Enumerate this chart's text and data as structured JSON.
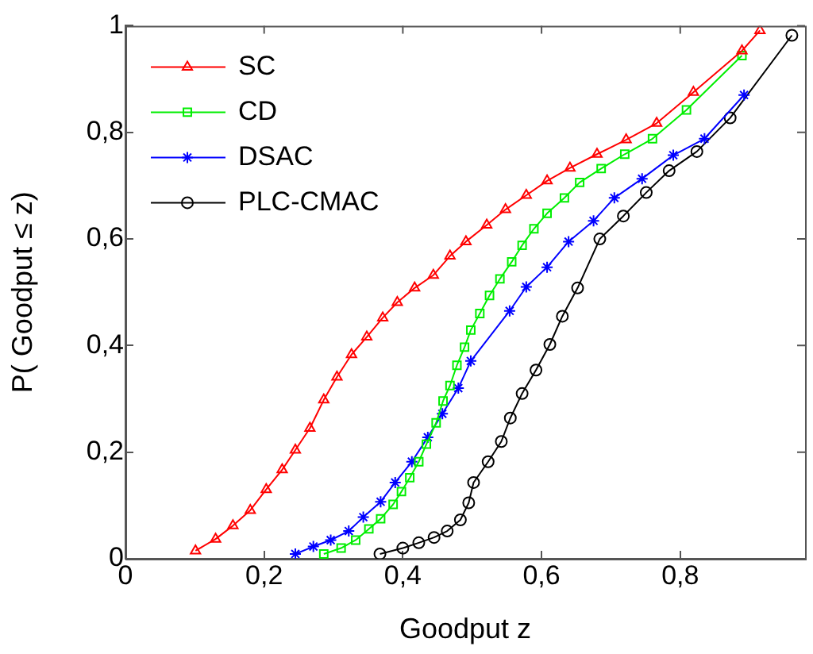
{
  "chart_data": {
    "type": "line",
    "xlabel": "Goodput z",
    "ylabel": "P( Goodput ≤ z)",
    "xlim": [
      0,
      0.98
    ],
    "ylim": [
      0,
      1
    ],
    "xticks": [
      0,
      {
        "value": 0.2,
        "label": "0,2"
      },
      {
        "value": 0.4,
        "label": "0,4"
      },
      {
        "value": 0.6,
        "label": "0,6"
      },
      {
        "value": 0.8,
        "label": "0,8"
      }
    ],
    "yticks": [
      0,
      {
        "value": 0.2,
        "label": "0,2"
      },
      {
        "value": 0.4,
        "label": "0,4"
      },
      {
        "value": 0.6,
        "label": "0,6"
      },
      {
        "value": 0.8,
        "label": "0,8"
      },
      1
    ],
    "grid": false,
    "legend": "top left",
    "line_style": "solid",
    "series": [
      {
        "name": "SC",
        "color": "#ff0000",
        "marker": "triangle",
        "x": [
          0.101,
          0.13,
          0.155,
          0.18,
          0.203,
          0.226,
          0.245,
          0.266,
          0.286,
          0.305,
          0.326,
          0.348,
          0.371,
          0.392,
          0.417,
          0.444,
          0.468,
          0.491,
          0.521,
          0.548,
          0.578,
          0.608,
          0.641,
          0.68,
          0.722,
          0.766,
          0.819,
          0.889,
          0.915
        ],
        "values": [
          0.015,
          0.037,
          0.062,
          0.091,
          0.13,
          0.167,
          0.204,
          0.245,
          0.298,
          0.341,
          0.383,
          0.416,
          0.452,
          0.481,
          0.508,
          0.532,
          0.568,
          0.595,
          0.626,
          0.655,
          0.682,
          0.709,
          0.733,
          0.759,
          0.786,
          0.817,
          0.875,
          0.953,
          0.991
        ]
      },
      {
        "name": "CD",
        "color": "#00ee00",
        "marker": "square",
        "x": [
          0.286,
          0.311,
          0.332,
          0.351,
          0.368,
          0.386,
          0.398,
          0.41,
          0.423,
          0.434,
          0.448,
          0.458,
          0.468,
          0.478,
          0.489,
          0.498,
          0.511,
          0.525,
          0.54,
          0.557,
          0.572,
          0.589,
          0.608,
          0.633,
          0.655,
          0.686,
          0.72,
          0.76,
          0.809,
          0.889
        ],
        "values": [
          0.009,
          0.02,
          0.035,
          0.056,
          0.075,
          0.102,
          0.126,
          0.152,
          0.182,
          0.215,
          0.255,
          0.296,
          0.325,
          0.363,
          0.397,
          0.429,
          0.46,
          0.494,
          0.525,
          0.557,
          0.588,
          0.619,
          0.648,
          0.677,
          0.706,
          0.732,
          0.759,
          0.788,
          0.842,
          0.944
        ]
      },
      {
        "name": "DSAC",
        "color": "#0000ff",
        "marker": "cross",
        "x": [
          0.245,
          0.271,
          0.296,
          0.322,
          0.343,
          0.368,
          0.389,
          0.413,
          0.436,
          0.457,
          0.48,
          0.498,
          0.554,
          0.578,
          0.608,
          0.639,
          0.675,
          0.705,
          0.745,
          0.79,
          0.835,
          0.892
        ],
        "values": [
          0.009,
          0.023,
          0.035,
          0.052,
          0.078,
          0.107,
          0.143,
          0.182,
          0.228,
          0.272,
          0.32,
          0.371,
          0.465,
          0.51,
          0.547,
          0.595,
          0.634,
          0.677,
          0.713,
          0.757,
          0.788,
          0.87
        ]
      },
      {
        "name": "PLC-CMAC",
        "color": "#000000",
        "marker": "circle",
        "x": [
          0.367,
          0.4,
          0.423,
          0.445,
          0.464,
          0.483,
          0.495,
          0.502,
          0.523,
          0.542,
          0.555,
          0.572,
          0.592,
          0.612,
          0.63,
          0.652,
          0.684,
          0.718,
          0.751,
          0.784,
          0.824,
          0.872,
          0.961
        ],
        "values": [
          0.009,
          0.02,
          0.03,
          0.04,
          0.052,
          0.073,
          0.105,
          0.143,
          0.182,
          0.22,
          0.264,
          0.31,
          0.354,
          0.402,
          0.455,
          0.508,
          0.6,
          0.643,
          0.687,
          0.728,
          0.764,
          0.827,
          0.982
        ]
      }
    ]
  }
}
